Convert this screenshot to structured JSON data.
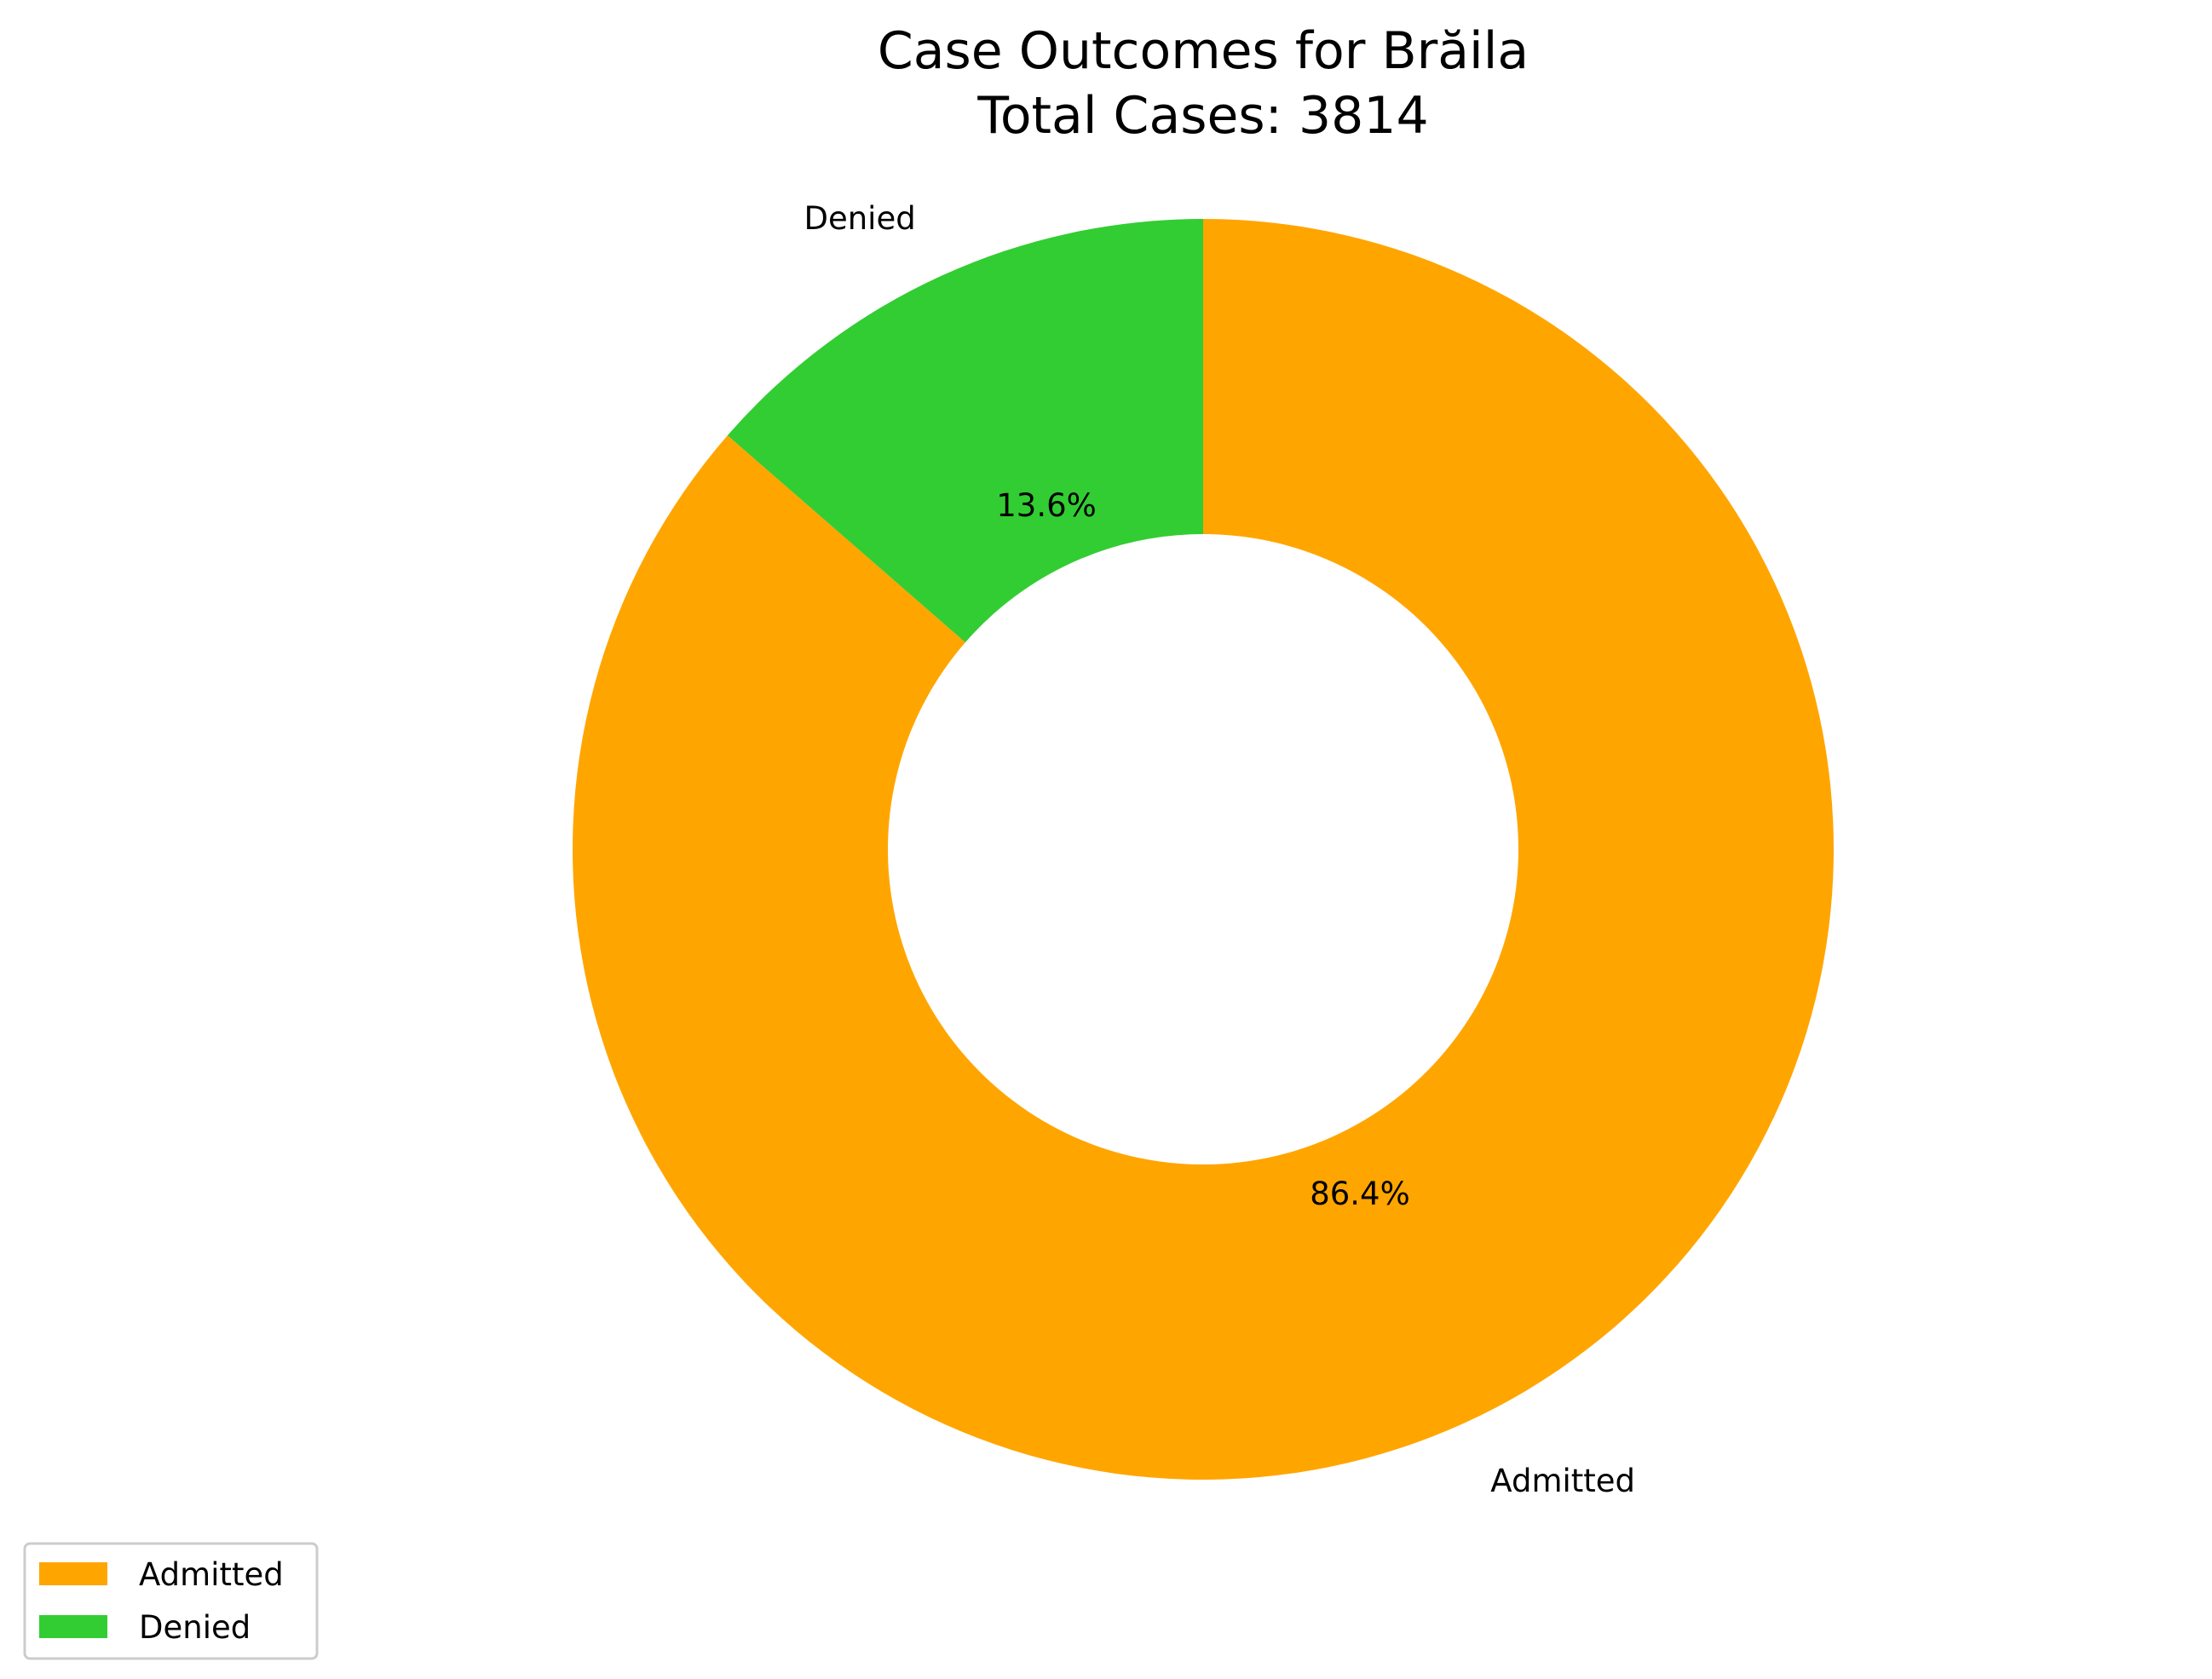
{
  "chart_data": {
    "type": "pie",
    "donut": true,
    "title_lines": [
      "Case Outcomes for Brăila",
      "Total Cases: 3814"
    ],
    "total": 3814,
    "start_angle_deg": 90,
    "direction": "clockwise",
    "slices": [
      {
        "label": "Admitted",
        "percent": 86.4,
        "percent_label": "86.4%",
        "color": "#FFA500"
      },
      {
        "label": "Denied",
        "percent": 13.6,
        "percent_label": "13.6%",
        "color": "#32CD32"
      }
    ],
    "legend": {
      "placement": "bottom-left",
      "items": [
        "Admitted",
        "Denied"
      ]
    }
  }
}
